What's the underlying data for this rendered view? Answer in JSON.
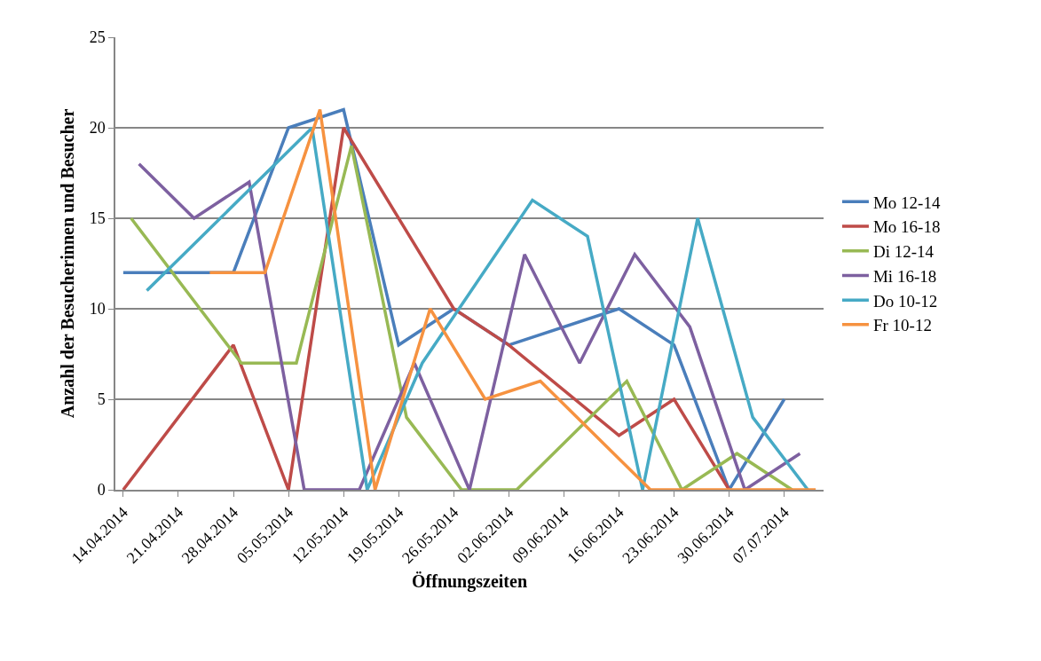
{
  "chart_data": {
    "type": "line",
    "xlabel": "Öffnungszeiten",
    "ylabel": "Anzahl der Besucherinnen und Besucher",
    "xlim": [
      "2014-04-13",
      "2014-07-12"
    ],
    "xticks": [
      {
        "value": "2014-04-14",
        "label": "14.04.2014"
      },
      {
        "value": "2014-04-21",
        "label": "21.04.2014"
      },
      {
        "value": "2014-04-28",
        "label": "28.04.2014"
      },
      {
        "value": "2014-05-05",
        "label": "05.05.2014"
      },
      {
        "value": "2014-05-12",
        "label": "12.05.2014"
      },
      {
        "value": "2014-05-19",
        "label": "19.05.2014"
      },
      {
        "value": "2014-05-26",
        "label": "26.05.2014"
      },
      {
        "value": "2014-06-02",
        "label": "02.06.2014"
      },
      {
        "value": "2014-06-09",
        "label": "09.06.2014"
      },
      {
        "value": "2014-06-16",
        "label": "16.06.2014"
      },
      {
        "value": "2014-06-23",
        "label": "23.06.2014"
      },
      {
        "value": "2014-06-30",
        "label": "30.06.2014"
      },
      {
        "value": "2014-07-07",
        "label": "07.07.2014"
      }
    ],
    "ylim": [
      0,
      25
    ],
    "yticks": [
      0,
      5,
      10,
      15,
      20,
      25
    ],
    "grid": "y",
    "legend": "right",
    "marker": "none",
    "line_style": "solid",
    "series": [
      {
        "name": "Mo 12-14",
        "color": "#4a7ebb",
        "x": [
          "2014-04-14",
          "2014-04-28",
          "2014-05-05",
          "2014-05-12",
          "2014-05-19",
          "2014-05-26",
          "2014-06-02",
          "2014-06-16",
          "2014-06-23",
          "2014-06-30",
          "2014-07-07"
        ],
        "values": [
          12,
          12,
          20,
          21,
          8,
          10,
          8,
          10,
          8,
          0,
          5
        ]
      },
      {
        "name": "Mo 16-18",
        "color": "#be4b48",
        "x": [
          "2014-04-14",
          "2014-04-28",
          "2014-05-05",
          "2014-05-12",
          "2014-05-26",
          "2014-06-02",
          "2014-06-16",
          "2014-06-23",
          "2014-06-30"
        ],
        "values": [
          0,
          8,
          0,
          20,
          10,
          8,
          3,
          5,
          0
        ]
      },
      {
        "name": "Di 12-14",
        "color": "#98b954",
        "x": [
          "2014-04-15",
          "2014-04-29",
          "2014-05-06",
          "2014-05-13",
          "2014-05-20",
          "2014-05-27",
          "2014-06-03",
          "2014-06-17",
          "2014-06-24",
          "2014-07-01",
          "2014-07-08"
        ],
        "values": [
          15,
          7,
          7,
          19,
          4,
          0,
          0,
          6,
          0,
          2,
          0
        ]
      },
      {
        "name": "Mi 16-18",
        "color": "#7d60a0",
        "x": [
          "2014-04-16",
          "2014-04-23",
          "2014-04-30",
          "2014-05-07",
          "2014-05-14",
          "2014-05-21",
          "2014-05-28",
          "2014-06-04",
          "2014-06-11",
          "2014-06-18",
          "2014-06-25",
          "2014-07-02",
          "2014-07-09"
        ],
        "values": [
          18,
          15,
          17,
          0,
          0,
          7,
          0,
          13,
          7,
          13,
          9,
          0,
          2
        ]
      },
      {
        "name": "Do 10-12",
        "color": "#46aac5",
        "x": [
          "2014-04-17",
          "2014-05-08",
          "2014-05-15",
          "2014-05-22",
          "2014-06-05",
          "2014-06-12",
          "2014-06-19",
          "2014-06-26",
          "2014-07-03",
          "2014-07-10"
        ],
        "values": [
          11,
          20,
          0,
          7,
          16,
          14,
          0,
          15,
          4,
          0
        ]
      },
      {
        "name": "Fr 10-12",
        "color": "#f69240",
        "x": [
          "2014-04-25",
          "2014-05-02",
          "2014-05-09",
          "2014-05-16",
          "2014-05-23",
          "2014-05-30",
          "2014-06-06",
          "2014-06-20",
          "2014-06-27",
          "2014-07-04",
          "2014-07-11"
        ],
        "values": [
          12,
          12,
          21,
          0,
          10,
          5,
          6,
          0,
          0,
          0,
          0
        ]
      }
    ]
  }
}
